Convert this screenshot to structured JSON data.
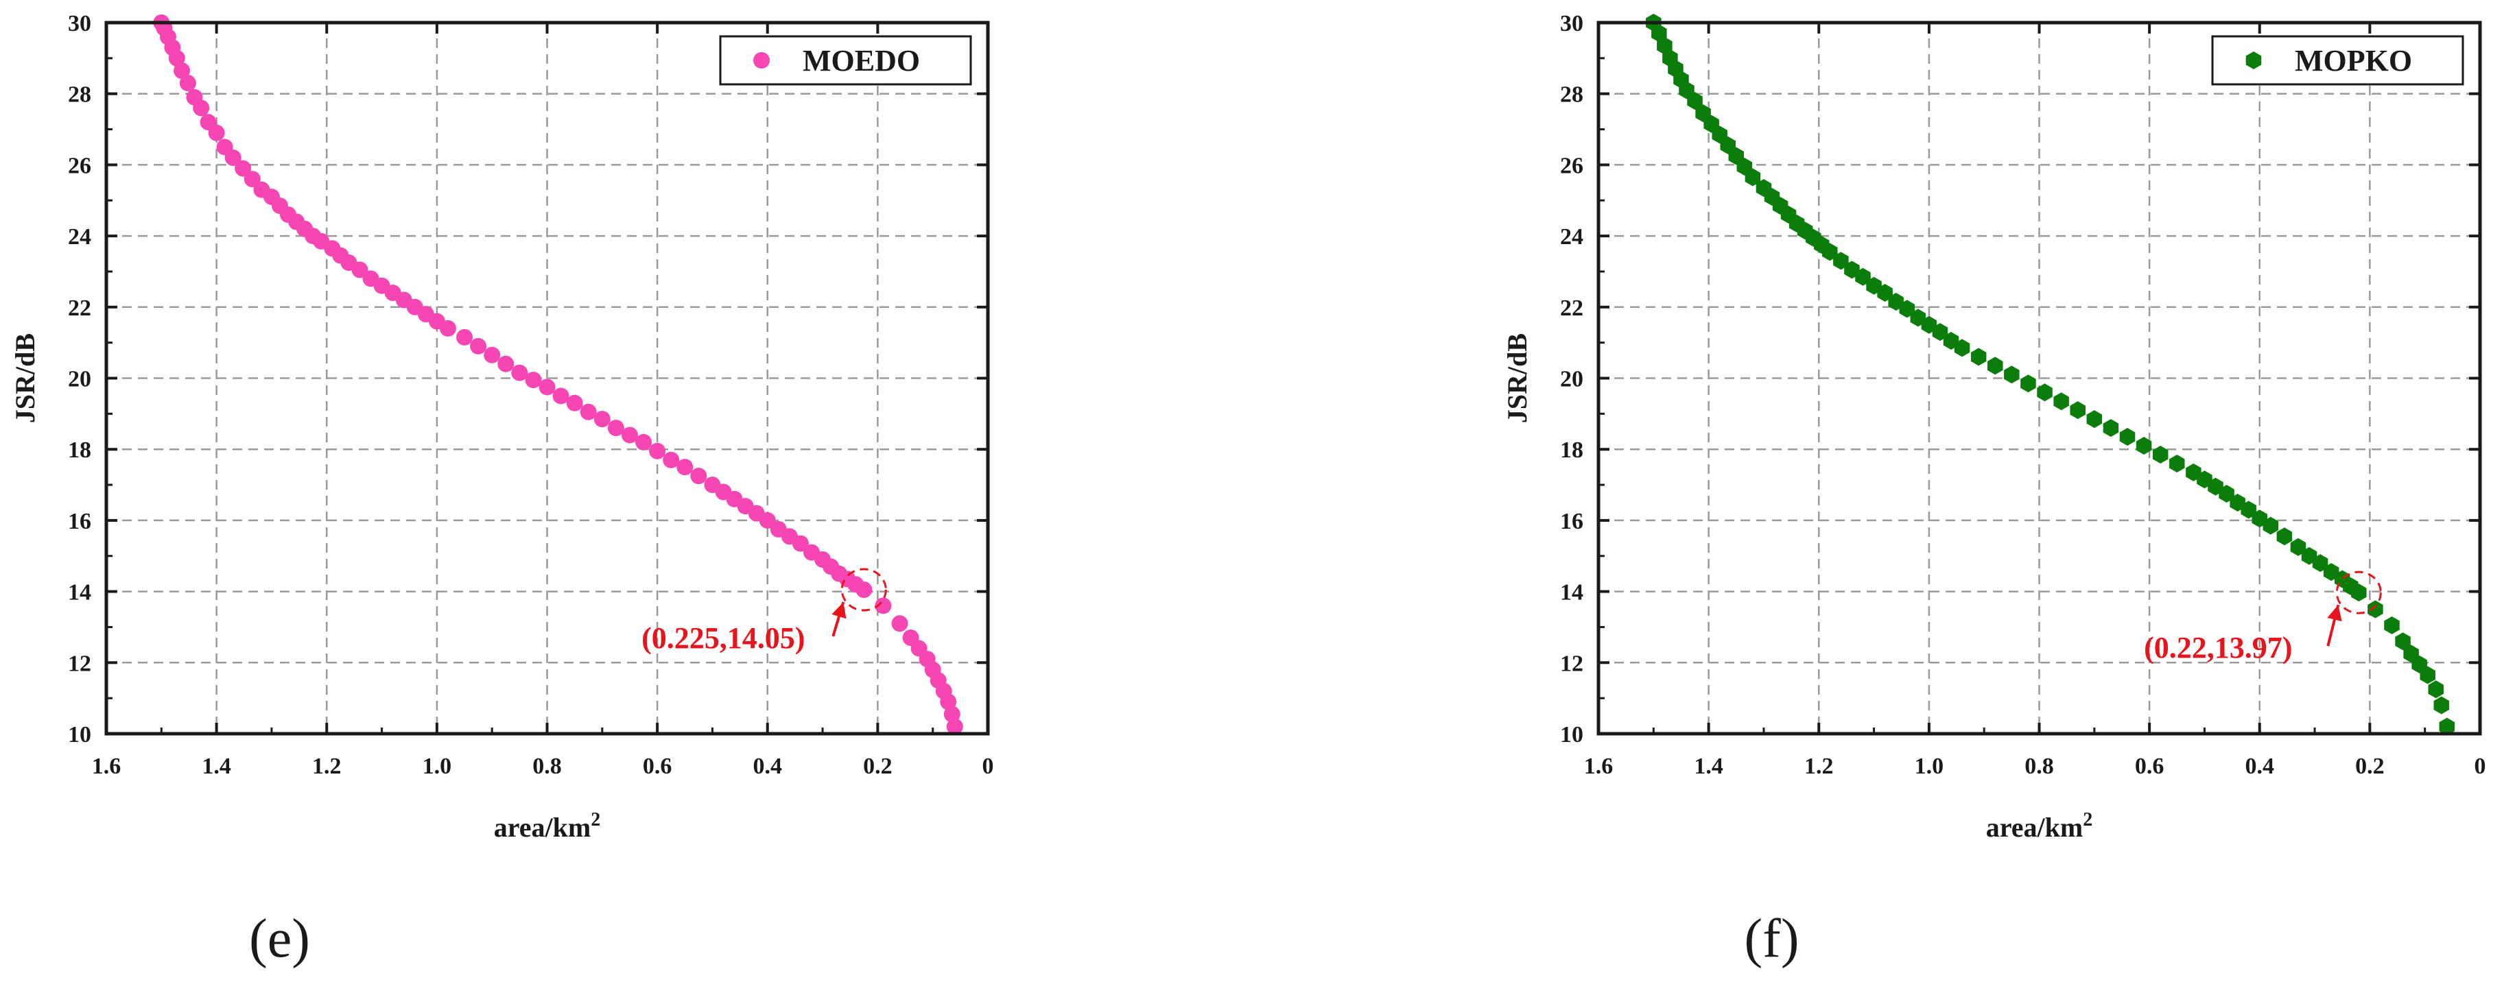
{
  "chart_data": [
    {
      "type": "scatter",
      "panel_label": "(e)",
      "xlabel": "area/km",
      "xlabel_sup": "2",
      "ylabel": "JSR/dB",
      "xlim": [
        1.6,
        0
      ],
      "ylim": [
        10,
        30
      ],
      "xticks": [
        "1.6",
        "1.4",
        "1.2",
        "1.0",
        "0.8",
        "0.6",
        "0.4",
        "0.2",
        "0"
      ],
      "yticks": [
        "10",
        "12",
        "14",
        "16",
        "18",
        "20",
        "22",
        "24",
        "26",
        "28",
        "30"
      ],
      "grid": true,
      "legend": {
        "label": "MOEDO",
        "position": "top-right",
        "marker": "circle"
      },
      "color": "#f546b4",
      "annotation": {
        "text": "(0.225,14.05)",
        "x": 0.225,
        "y": 14.05,
        "color": "#e8141c"
      },
      "series": [
        {
          "name": "MOEDO",
          "x": [
            1.5,
            1.495,
            1.488,
            1.48,
            1.472,
            1.463,
            1.452,
            1.44,
            1.428,
            1.415,
            1.4,
            1.385,
            1.37,
            1.352,
            1.335,
            1.318,
            1.3,
            1.285,
            1.27,
            1.255,
            1.24,
            1.225,
            1.21,
            1.19,
            1.175,
            1.16,
            1.14,
            1.12,
            1.1,
            1.08,
            1.06,
            1.04,
            1.02,
            1.0,
            0.98,
            0.95,
            0.925,
            0.9,
            0.875,
            0.85,
            0.825,
            0.8,
            0.775,
            0.75,
            0.725,
            0.7,
            0.675,
            0.65,
            0.625,
            0.6,
            0.575,
            0.55,
            0.525,
            0.5,
            0.48,
            0.46,
            0.44,
            0.42,
            0.4,
            0.38,
            0.36,
            0.34,
            0.32,
            0.3,
            0.285,
            0.27,
            0.255,
            0.24,
            0.225,
            0.19,
            0.16,
            0.14,
            0.125,
            0.11,
            0.1,
            0.09,
            0.08,
            0.072,
            0.065,
            0.06
          ],
          "y": [
            30,
            29.85,
            29.6,
            29.3,
            29.0,
            28.65,
            28.3,
            27.9,
            27.6,
            27.2,
            26.9,
            26.5,
            26.2,
            25.9,
            25.6,
            25.3,
            25.1,
            24.85,
            24.6,
            24.4,
            24.2,
            24.0,
            23.85,
            23.65,
            23.45,
            23.25,
            23.05,
            22.8,
            22.6,
            22.4,
            22.2,
            22.0,
            21.8,
            21.6,
            21.4,
            21.15,
            20.9,
            20.65,
            20.4,
            20.15,
            19.95,
            19.75,
            19.5,
            19.3,
            19.05,
            18.85,
            18.6,
            18.4,
            18.2,
            17.95,
            17.7,
            17.5,
            17.25,
            17.0,
            16.8,
            16.6,
            16.4,
            16.2,
            16.0,
            15.75,
            15.55,
            15.35,
            15.1,
            14.9,
            14.7,
            14.5,
            14.35,
            14.2,
            14.05,
            13.6,
            13.1,
            12.7,
            12.4,
            12.1,
            11.8,
            11.5,
            11.2,
            10.9,
            10.55,
            10.2
          ]
        }
      ]
    },
    {
      "type": "scatter",
      "panel_label": "(f)",
      "xlabel": "area/km",
      "xlabel_sup": "2",
      "ylabel": "JSR/dB",
      "xlim": [
        1.6,
        0
      ],
      "ylim": [
        10,
        30
      ],
      "xticks": [
        "1.6",
        "1.4",
        "1.2",
        "1.0",
        "0.8",
        "0.6",
        "0.4",
        "0.2",
        "0"
      ],
      "yticks": [
        "10",
        "12",
        "14",
        "16",
        "18",
        "20",
        "22",
        "24",
        "26",
        "28",
        "30"
      ],
      "grid": true,
      "legend": {
        "label": "MOPKO",
        "position": "top-right",
        "marker": "hexagon"
      },
      "color": "#0a7d0a",
      "annotation": {
        "text": "(0.22,13.97)",
        "x": 0.22,
        "y": 13.97,
        "color": "#e8141c"
      },
      "series": [
        {
          "name": "MOPKO",
          "x": [
            1.5,
            1.49,
            1.48,
            1.47,
            1.46,
            1.45,
            1.44,
            1.425,
            1.41,
            1.395,
            1.38,
            1.365,
            1.35,
            1.335,
            1.32,
            1.3,
            1.285,
            1.27,
            1.255,
            1.24,
            1.225,
            1.21,
            1.195,
            1.18,
            1.16,
            1.14,
            1.12,
            1.1,
            1.08,
            1.06,
            1.04,
            1.02,
            1.0,
            0.98,
            0.96,
            0.94,
            0.91,
            0.88,
            0.85,
            0.82,
            0.79,
            0.76,
            0.73,
            0.7,
            0.67,
            0.64,
            0.61,
            0.58,
            0.55,
            0.52,
            0.5,
            0.48,
            0.46,
            0.44,
            0.42,
            0.4,
            0.38,
            0.355,
            0.33,
            0.31,
            0.29,
            0.27,
            0.25,
            0.235,
            0.22,
            0.19,
            0.16,
            0.14,
            0.125,
            0.11,
            0.095,
            0.08,
            0.07,
            0.06
          ],
          "y": [
            30,
            29.7,
            29.35,
            29.0,
            28.7,
            28.4,
            28.1,
            27.8,
            27.45,
            27.15,
            26.85,
            26.55,
            26.25,
            25.95,
            25.65,
            25.35,
            25.1,
            24.85,
            24.6,
            24.35,
            24.15,
            23.95,
            23.75,
            23.55,
            23.3,
            23.05,
            22.85,
            22.6,
            22.4,
            22.15,
            21.95,
            21.7,
            21.5,
            21.3,
            21.05,
            20.85,
            20.6,
            20.35,
            20.1,
            19.85,
            19.6,
            19.35,
            19.1,
            18.85,
            18.6,
            18.35,
            18.1,
            17.85,
            17.6,
            17.35,
            17.15,
            16.95,
            16.75,
            16.5,
            16.3,
            16.05,
            15.85,
            15.55,
            15.25,
            15.0,
            14.8,
            14.55,
            14.35,
            14.15,
            13.97,
            13.5,
            13.05,
            12.6,
            12.25,
            11.95,
            11.65,
            11.25,
            10.8,
            10.2
          ]
        }
      ]
    }
  ]
}
